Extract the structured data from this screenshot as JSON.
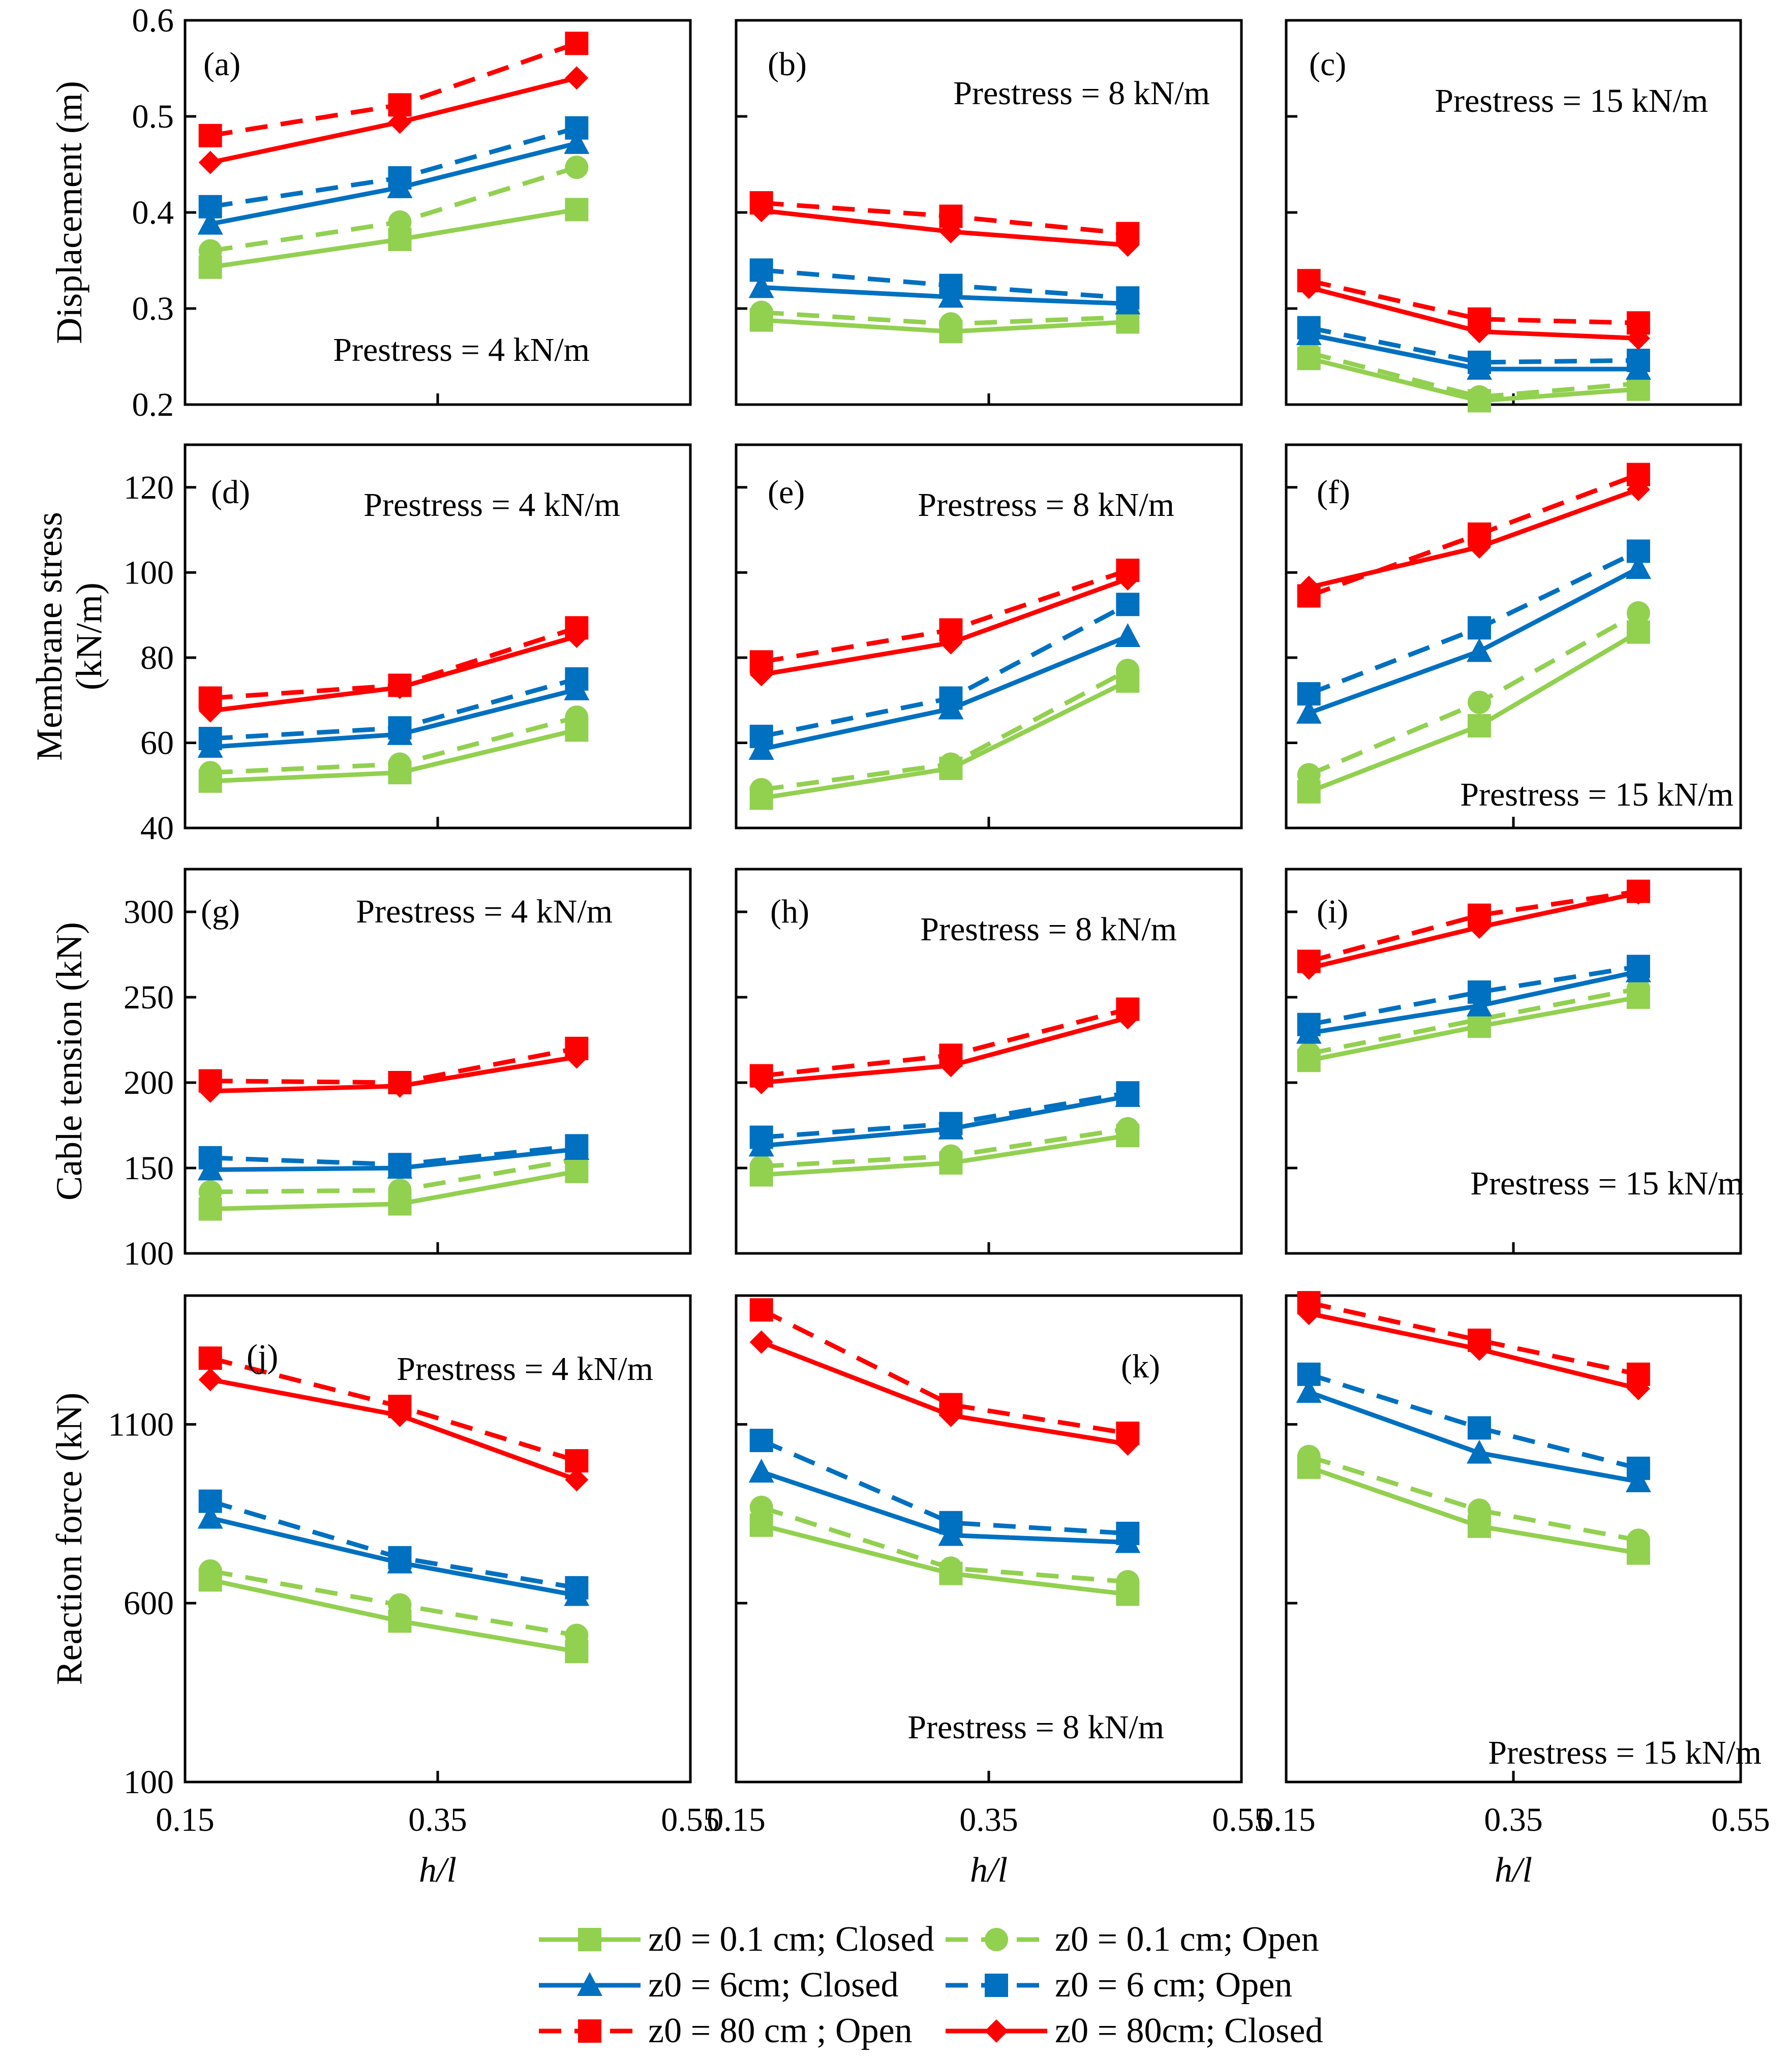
{
  "figure": {
    "x_label": "h/l",
    "x_ticks": [
      "0.15",
      "0.35",
      "0.55"
    ],
    "x_range": [
      0.15,
      0.55
    ]
  },
  "series_styles": [
    {
      "key": "g_closed",
      "label": "z0 = 0.1 cm; Closed",
      "color": "#92d050",
      "dashed": false,
      "marker": "square"
    },
    {
      "key": "g_open",
      "label": "z0 = 0.1 cm; Open",
      "color": "#92d050",
      "dashed": true,
      "marker": "circle"
    },
    {
      "key": "b_closed",
      "label": "z0 = 6cm; Closed",
      "color": "#0070c0",
      "dashed": false,
      "marker": "triangle"
    },
    {
      "key": "b_open",
      "label": "z0 = 6 cm; Open",
      "color": "#0070c0",
      "dashed": true,
      "marker": "square"
    },
    {
      "key": "r_open",
      "label": "z0 = 80 cm ; Open",
      "color": "#ff0000",
      "dashed": true,
      "marker": "square"
    },
    {
      "key": "r_closed",
      "label": "z0 = 80cm; Closed",
      "color": "#ff0000",
      "dashed": false,
      "marker": "diamond"
    }
  ],
  "legend": {
    "rows": [
      [
        "z0 = 0.1 cm; Closed",
        "z0 = 0.1 cm; Open"
      ],
      [
        "z0 = 6cm; Closed",
        "z0 = 6 cm; Open"
      ],
      [
        "z0 = 80 cm ; Open",
        "z0 = 80cm; Closed"
      ]
    ]
  },
  "rows": [
    {
      "ylabel": [
        "Displacement (m)"
      ],
      "ylim": [
        0.2,
        0.6
      ],
      "yticks": [
        "0.2",
        "0.3",
        "0.4",
        "0.5",
        "0.6"
      ]
    },
    {
      "ylabel": [
        "Membrane stress",
        "(kN/m)"
      ],
      "ylim": [
        40,
        130
      ],
      "yticks": [
        "40",
        "60",
        "80",
        "100",
        "120"
      ]
    },
    {
      "ylabel": [
        "Cable tension (kN)"
      ],
      "ylim": [
        100,
        325
      ],
      "yticks": [
        "100",
        "150",
        "200",
        "250",
        "300"
      ]
    },
    {
      "ylabel": [
        "Reaction force (kN)"
      ],
      "ylim": [
        100,
        1460
      ],
      "yticks": [
        "100",
        "600",
        "1100"
      ]
    }
  ],
  "chart_data": [
    {
      "type": "line",
      "panel": "(a)",
      "annotation": "Prestress = 4 kN/m",
      "x": [
        0.17,
        0.32,
        0.46
      ],
      "series": [
        {
          "name": "z0 = 0.1 cm; Closed",
          "values": [
            0.343,
            0.372,
            0.403
          ]
        },
        {
          "name": "z0 = 0.1 cm; Open",
          "values": [
            0.36,
            0.39,
            0.447
          ]
        },
        {
          "name": "z0 = 6cm; Closed",
          "values": [
            0.388,
            0.426,
            0.472
          ]
        },
        {
          "name": "z0 = 6 cm; Open",
          "values": [
            0.406,
            0.436,
            0.488
          ]
        },
        {
          "name": "z0 = 80 cm ; Open",
          "values": [
            0.48,
            0.512,
            0.576
          ]
        },
        {
          "name": "z0 = 80cm; Closed",
          "values": [
            0.452,
            0.494,
            0.54
          ]
        }
      ]
    },
    {
      "type": "line",
      "panel": "(b)",
      "annotation": "Prestress = 8 kN/m",
      "x": [
        0.17,
        0.32,
        0.46
      ],
      "series": [
        {
          "name": "z0 = 0.1 cm; Closed",
          "values": [
            0.288,
            0.276,
            0.286
          ]
        },
        {
          "name": "z0 = 0.1 cm; Open",
          "values": [
            0.296,
            0.284,
            0.291
          ]
        },
        {
          "name": "z0 = 6cm; Closed",
          "values": [
            0.322,
            0.312,
            0.305
          ]
        },
        {
          "name": "z0 = 6 cm; Open",
          "values": [
            0.34,
            0.324,
            0.311
          ]
        },
        {
          "name": "z0 = 80 cm ; Open",
          "values": [
            0.41,
            0.396,
            0.378
          ]
        },
        {
          "name": "z0 = 80cm; Closed",
          "values": [
            0.402,
            0.38,
            0.366
          ]
        }
      ]
    },
    {
      "type": "line",
      "panel": "(c)",
      "annotation": "Prestress = 15 kN/m",
      "x": [
        0.17,
        0.32,
        0.46
      ],
      "series": [
        {
          "name": "z0 = 0.1 cm; Closed",
          "values": [
            0.248,
            0.204,
            0.216
          ]
        },
        {
          "name": "z0 = 0.1 cm; Open",
          "values": [
            0.254,
            0.208,
            0.222
          ]
        },
        {
          "name": "z0 = 6cm; Closed",
          "values": [
            0.273,
            0.237,
            0.237
          ]
        },
        {
          "name": "z0 = 6 cm; Open",
          "values": [
            0.28,
            0.244,
            0.246
          ]
        },
        {
          "name": "z0 = 80 cm ; Open",
          "values": [
            0.329,
            0.289,
            0.285
          ]
        },
        {
          "name": "z0 = 80cm; Closed",
          "values": [
            0.322,
            0.276,
            0.269
          ]
        }
      ]
    },
    {
      "type": "line",
      "panel": "(d)",
      "annotation": "Prestress = 4 kN/m",
      "x": [
        0.17,
        0.32,
        0.46
      ],
      "series": [
        {
          "name": "z0 = 0.1 cm; Closed",
          "values": [
            51,
            53,
            63
          ]
        },
        {
          "name": "z0 = 0.1 cm; Open",
          "values": [
            53,
            55,
            66
          ]
        },
        {
          "name": "z0 = 6cm; Closed",
          "values": [
            59,
            62,
            72.5
          ]
        },
        {
          "name": "z0 = 6 cm; Open",
          "values": [
            61,
            63.5,
            75
          ]
        },
        {
          "name": "z0 = 80 cm ; Open",
          "values": [
            70.5,
            73.5,
            87
          ]
        },
        {
          "name": "z0 = 80cm; Closed",
          "values": [
            67.5,
            73,
            85
          ]
        }
      ]
    },
    {
      "type": "line",
      "panel": "(e)",
      "annotation": "Prestress = 8 kN/m",
      "x": [
        0.17,
        0.32,
        0.46
      ],
      "series": [
        {
          "name": "z0 = 0.1 cm; Closed",
          "values": [
            47,
            54,
            74.5
          ]
        },
        {
          "name": "z0 = 0.1 cm; Open",
          "values": [
            49,
            55,
            77
          ]
        },
        {
          "name": "z0 = 6cm; Closed",
          "values": [
            58.5,
            68,
            85
          ]
        },
        {
          "name": "z0 = 6 cm; Open",
          "values": [
            61.5,
            70.5,
            92.5
          ]
        },
        {
          "name": "z0 = 80 cm ; Open",
          "values": [
            79,
            86.5,
            100.5
          ]
        },
        {
          "name": "z0 = 80cm; Closed",
          "values": [
            76,
            83.5,
            98.5
          ]
        }
      ]
    },
    {
      "type": "line",
      "panel": "(f)",
      "annotation": "Prestress = 15 kN/m",
      "x": [
        0.17,
        0.32,
        0.46
      ],
      "series": [
        {
          "name": "z0 = 0.1 cm; Closed",
          "values": [
            48.5,
            64,
            86
          ]
        },
        {
          "name": "z0 = 0.1 cm; Open",
          "values": [
            52.5,
            69.5,
            90.5
          ]
        },
        {
          "name": "z0 = 6cm; Closed",
          "values": [
            67,
            81.5,
            101
          ]
        },
        {
          "name": "z0 = 6 cm; Open",
          "values": [
            71.5,
            87,
            105
          ]
        },
        {
          "name": "z0 = 80 cm ; Open",
          "values": [
            94.5,
            109,
            123
          ]
        },
        {
          "name": "z0 = 80cm; Closed",
          "values": [
            96.5,
            106,
            119.5
          ]
        }
      ]
    },
    {
      "type": "line",
      "panel": "(g)",
      "annotation": "Prestress = 4 kN/m",
      "x": [
        0.17,
        0.32,
        0.46
      ],
      "series": [
        {
          "name": "z0 = 0.1 cm; Closed",
          "values": [
            126,
            129,
            148
          ]
        },
        {
          "name": "z0 = 0.1 cm; Open",
          "values": [
            136,
            137,
            155
          ]
        },
        {
          "name": "z0 = 6cm; Closed",
          "values": [
            149,
            150,
            161
          ]
        },
        {
          "name": "z0 = 6 cm; Open",
          "values": [
            156,
            152,
            163
          ]
        },
        {
          "name": "z0 = 80 cm ; Open",
          "values": [
            201,
            200,
            220
          ]
        },
        {
          "name": "z0 = 80cm; Closed",
          "values": [
            195,
            198,
            215
          ]
        }
      ]
    },
    {
      "type": "line",
      "panel": "(h)",
      "annotation": "Prestress = 8 kN/m",
      "x": [
        0.17,
        0.32,
        0.46
      ],
      "series": [
        {
          "name": "z0 = 0.1 cm; Closed",
          "values": [
            146,
            153,
            169
          ]
        },
        {
          "name": "z0 = 0.1 cm; Open",
          "values": [
            151,
            157,
            173
          ]
        },
        {
          "name": "z0 = 6cm; Closed",
          "values": [
            163,
            173,
            192
          ]
        },
        {
          "name": "z0 = 6 cm; Open",
          "values": [
            168,
            176,
            194
          ]
        },
        {
          "name": "z0 = 80 cm ; Open",
          "values": [
            204,
            216,
            243
          ]
        },
        {
          "name": "z0 = 80cm; Closed",
          "values": [
            200,
            210,
            238
          ]
        }
      ]
    },
    {
      "type": "line",
      "panel": "(i)",
      "annotation": "Prestress = 15 kN/m",
      "x": [
        0.17,
        0.32,
        0.46
      ],
      "series": [
        {
          "name": "z0 = 0.1 cm; Closed",
          "values": [
            213,
            233,
            250
          ]
        },
        {
          "name": "z0 = 0.1 cm; Open",
          "values": [
            217,
            237,
            255
          ]
        },
        {
          "name": "z0 = 6cm; Closed",
          "values": [
            229,
            245,
            265
          ]
        },
        {
          "name": "z0 = 6 cm; Open",
          "values": [
            234,
            253,
            268
          ]
        },
        {
          "name": "z0 = 80 cm ; Open",
          "values": [
            271,
            298,
            312
          ]
        },
        {
          "name": "z0 = 80cm; Closed",
          "values": [
            267,
            291,
            311
          ]
        }
      ]
    },
    {
      "type": "line",
      "panel": "(j)",
      "annotation": "Prestress = 4 kN/m",
      "x": [
        0.17,
        0.32,
        0.46
      ],
      "series": [
        {
          "name": "z0 = 0.1 cm; Closed",
          "values": [
            665,
            550,
            465
          ]
        },
        {
          "name": "z0 = 0.1 cm; Open",
          "values": [
            690,
            595,
            510
          ]
        },
        {
          "name": "z0 = 6cm; Closed",
          "values": [
            838,
            713,
            622
          ]
        },
        {
          "name": "z0 = 6 cm; Open",
          "values": [
            885,
            727,
            643
          ]
        },
        {
          "name": "z0 = 80 cm ; Open",
          "values": [
            1285,
            1150,
            998
          ]
        },
        {
          "name": "z0 = 80cm; Closed",
          "values": [
            1225,
            1125,
            945
          ]
        }
      ]
    },
    {
      "type": "line",
      "panel": "(k)",
      "annotation": "Prestress = 8 kN/m",
      "x": [
        0.17,
        0.32,
        0.46
      ],
      "series": [
        {
          "name": "z0 = 0.1 cm; Closed",
          "values": [
            818,
            683,
            625
          ]
        },
        {
          "name": "z0 = 0.1 cm; Open",
          "values": [
            868,
            698,
            660
          ]
        },
        {
          "name": "z0 = 6cm; Closed",
          "values": [
            967,
            790,
            770
          ]
        },
        {
          "name": "z0 = 6 cm; Open",
          "values": [
            1055,
            825,
            795
          ]
        },
        {
          "name": "z0 = 80 cm ; Open",
          "values": [
            1420,
            1155,
            1075
          ]
        },
        {
          "name": "z0 = 80cm; Closed",
          "values": [
            1330,
            1125,
            1045
          ]
        }
      ]
    },
    {
      "type": "line",
      "panel": "",
      "annotation": "Prestress = 15 kN/m",
      "x": [
        0.17,
        0.32,
        0.46
      ],
      "series": [
        {
          "name": "z0 = 0.1 cm; Closed",
          "values": [
            980,
            815,
            740
          ]
        },
        {
          "name": "z0 = 0.1 cm; Open",
          "values": [
            1010,
            860,
            776
          ]
        },
        {
          "name": "z0 = 6cm; Closed",
          "values": [
            1190,
            1020,
            940
          ]
        },
        {
          "name": "z0 = 6 cm; Open",
          "values": [
            1240,
            1090,
            977
          ]
        },
        {
          "name": "z0 = 80 cm ; Open",
          "values": [
            1440,
            1335,
            1240
          ]
        },
        {
          "name": "z0 = 80cm; Closed",
          "values": [
            1410,
            1310,
            1200
          ]
        }
      ]
    }
  ]
}
